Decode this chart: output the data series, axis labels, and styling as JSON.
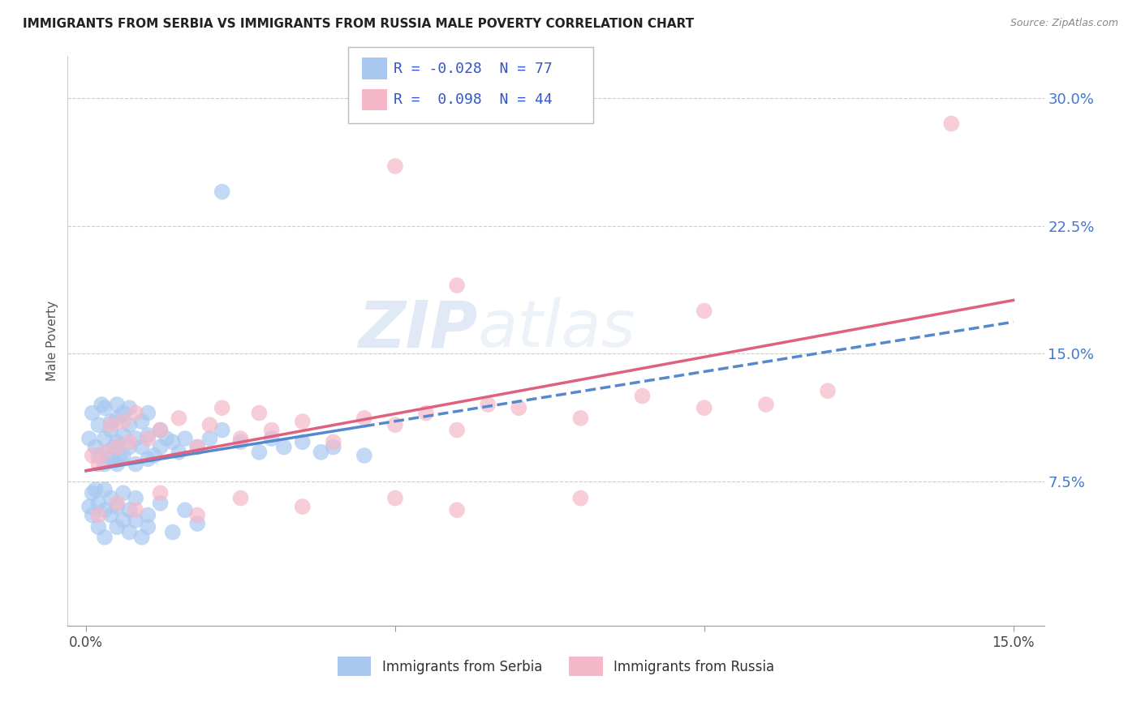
{
  "title": "IMMIGRANTS FROM SERBIA VS IMMIGRANTS FROM RUSSIA MALE POVERTY CORRELATION CHART",
  "source": "Source: ZipAtlas.com",
  "ylabel": "Male Poverty",
  "xlim": [
    -0.003,
    0.155
  ],
  "ylim": [
    -0.01,
    0.325
  ],
  "yticks": [
    0.075,
    0.15,
    0.225,
    0.3
  ],
  "ytick_labels": [
    "7.5%",
    "15.0%",
    "22.5%",
    "30.0%"
  ],
  "xticks": [
    0.0,
    0.05,
    0.1,
    0.15
  ],
  "xtick_labels": [
    "0.0%",
    "",
    "",
    "15.0%"
  ],
  "serbia_R": -0.028,
  "serbia_N": 77,
  "russia_R": 0.098,
  "russia_N": 44,
  "serbia_color": "#a8c8f0",
  "russia_color": "#f4b8c8",
  "line_serbia_color": "#5588cc",
  "line_russia_color": "#e06080",
  "legend_serbia": "Immigrants from Serbia",
  "legend_russia": "Immigrants from Russia",
  "serbia_x": [
    0.0005,
    0.001,
    0.0015,
    0.002,
    0.002,
    0.0025,
    0.003,
    0.003,
    0.003,
    0.0035,
    0.004,
    0.004,
    0.004,
    0.0045,
    0.005,
    0.005,
    0.005,
    0.005,
    0.0055,
    0.006,
    0.006,
    0.006,
    0.007,
    0.007,
    0.007,
    0.008,
    0.008,
    0.009,
    0.009,
    0.01,
    0.01,
    0.01,
    0.011,
    0.012,
    0.012,
    0.013,
    0.014,
    0.015,
    0.016,
    0.018,
    0.02,
    0.022,
    0.025,
    0.028,
    0.03,
    0.032,
    0.035,
    0.038,
    0.04,
    0.045,
    0.0005,
    0.001,
    0.001,
    0.0015,
    0.002,
    0.002,
    0.003,
    0.003,
    0.003,
    0.004,
    0.004,
    0.005,
    0.005,
    0.006,
    0.006,
    0.007,
    0.007,
    0.008,
    0.008,
    0.009,
    0.01,
    0.01,
    0.012,
    0.014,
    0.016,
    0.018,
    0.022
  ],
  "serbia_y": [
    0.1,
    0.115,
    0.095,
    0.108,
    0.09,
    0.12,
    0.085,
    0.1,
    0.118,
    0.092,
    0.11,
    0.088,
    0.105,
    0.095,
    0.112,
    0.085,
    0.098,
    0.12,
    0.088,
    0.102,
    0.115,
    0.09,
    0.108,
    0.095,
    0.118,
    0.1,
    0.085,
    0.11,
    0.095,
    0.102,
    0.088,
    0.115,
    0.09,
    0.105,
    0.095,
    0.1,
    0.098,
    0.092,
    0.1,
    0.095,
    0.1,
    0.105,
    0.098,
    0.092,
    0.1,
    0.095,
    0.098,
    0.092,
    0.095,
    0.09,
    0.06,
    0.068,
    0.055,
    0.07,
    0.048,
    0.062,
    0.058,
    0.07,
    0.042,
    0.065,
    0.055,
    0.048,
    0.06,
    0.052,
    0.068,
    0.045,
    0.058,
    0.052,
    0.065,
    0.042,
    0.055,
    0.048,
    0.062,
    0.045,
    0.058,
    0.05,
    0.245
  ],
  "russia_x": [
    0.001,
    0.002,
    0.003,
    0.004,
    0.005,
    0.006,
    0.007,
    0.008,
    0.01,
    0.012,
    0.015,
    0.018,
    0.02,
    0.022,
    0.025,
    0.028,
    0.03,
    0.035,
    0.04,
    0.045,
    0.05,
    0.055,
    0.06,
    0.065,
    0.07,
    0.08,
    0.09,
    0.1,
    0.11,
    0.12,
    0.002,
    0.005,
    0.008,
    0.012,
    0.018,
    0.025,
    0.035,
    0.05,
    0.06,
    0.08,
    0.05,
    0.06,
    0.1,
    0.14
  ],
  "russia_y": [
    0.09,
    0.085,
    0.092,
    0.108,
    0.095,
    0.11,
    0.098,
    0.115,
    0.1,
    0.105,
    0.112,
    0.095,
    0.108,
    0.118,
    0.1,
    0.115,
    0.105,
    0.11,
    0.098,
    0.112,
    0.108,
    0.115,
    0.105,
    0.12,
    0.118,
    0.112,
    0.125,
    0.118,
    0.12,
    0.128,
    0.055,
    0.062,
    0.058,
    0.068,
    0.055,
    0.065,
    0.06,
    0.065,
    0.058,
    0.065,
    0.26,
    0.19,
    0.175,
    0.285
  ]
}
